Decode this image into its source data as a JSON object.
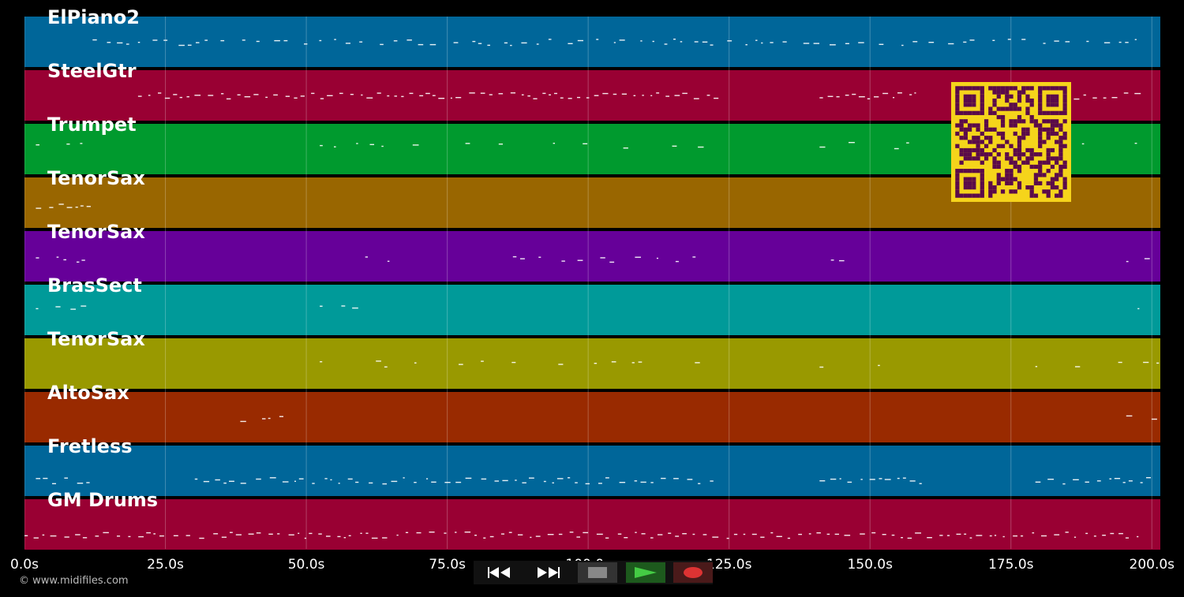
{
  "tracks": [
    {
      "label": "ElPiano2",
      "color": "#006699"
    },
    {
      "label": "SteelGtr",
      "color": "#990033"
    },
    {
      "label": "Trumpet",
      "color": "#009a2e"
    },
    {
      "label": "TenorSax",
      "color": "#996600"
    },
    {
      "label": "TenorSax",
      "color": "#660099"
    },
    {
      "label": "BrasSect",
      "color": "#009a99"
    },
    {
      "label": "TenorSax",
      "color": "#999900"
    },
    {
      "label": "AltoSax",
      "color": "#992a00"
    },
    {
      "label": "Fretless",
      "color": "#006699"
    },
    {
      "label": "GM Drums",
      "color": "#990033"
    }
  ],
  "timeline": {
    "max_seconds": 201.5,
    "ticks": [
      {
        "value": 0,
        "label": "0.0s"
      },
      {
        "value": 25,
        "label": "25.0s"
      },
      {
        "value": 50,
        "label": "50.0s"
      },
      {
        "value": 75,
        "label": "75.0s"
      },
      {
        "value": 100,
        "label": "100.0s"
      },
      {
        "value": 125,
        "label": "125.0s"
      },
      {
        "value": 150,
        "label": "150.0s"
      },
      {
        "value": 175,
        "label": "175.0s"
      },
      {
        "value": 200,
        "label": "200.0s"
      }
    ]
  },
  "copyright": "© www.midifiles.com",
  "transport": {
    "rewind_icon": "rewind-icon",
    "forward_icon": "fast-forward-icon",
    "stop_icon": "stop-icon",
    "play_icon": "play-icon",
    "record_icon": "record-icon",
    "stop_color": "#888888",
    "play_color": "#44cc44",
    "record_color": "#dd3333"
  },
  "qr_color": "#5a0a4a"
}
